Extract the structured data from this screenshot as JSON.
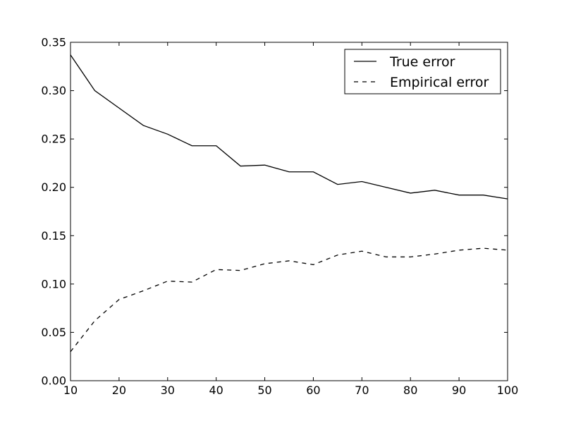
{
  "chart_data": {
    "type": "line",
    "title": "",
    "xlabel": "",
    "ylabel": "",
    "xlim": [
      10,
      100
    ],
    "ylim": [
      0.0,
      0.35
    ],
    "x_ticks": [
      10,
      20,
      30,
      40,
      50,
      60,
      70,
      80,
      90,
      100
    ],
    "y_ticks": [
      0.0,
      0.05,
      0.1,
      0.15,
      0.2,
      0.25,
      0.3,
      0.35
    ],
    "x_tick_labels": [
      "10",
      "20",
      "30",
      "40",
      "50",
      "60",
      "70",
      "80",
      "90",
      "100"
    ],
    "y_tick_labels": [
      "0.00",
      "0.05",
      "0.10",
      "0.15",
      "0.20",
      "0.25",
      "0.30",
      "0.35"
    ],
    "grid": false,
    "legend_position": "top-right",
    "x": [
      10,
      15,
      20,
      25,
      30,
      35,
      40,
      45,
      50,
      55,
      60,
      65,
      70,
      75,
      80,
      85,
      90,
      95,
      100
    ],
    "series": [
      {
        "name": "True error",
        "style": "solid",
        "color": "#000000",
        "values": [
          0.337,
          0.3,
          0.282,
          0.264,
          0.255,
          0.243,
          0.243,
          0.222,
          0.223,
          0.216,
          0.216,
          0.203,
          0.206,
          0.2,
          0.194,
          0.197,
          0.192,
          0.192,
          0.188
        ]
      },
      {
        "name": "Empirical error",
        "style": "dashed",
        "color": "#000000",
        "values": [
          0.03,
          0.062,
          0.084,
          0.093,
          0.103,
          0.102,
          0.115,
          0.114,
          0.121,
          0.124,
          0.12,
          0.13,
          0.134,
          0.128,
          0.128,
          0.131,
          0.135,
          0.137,
          0.135
        ]
      }
    ]
  }
}
